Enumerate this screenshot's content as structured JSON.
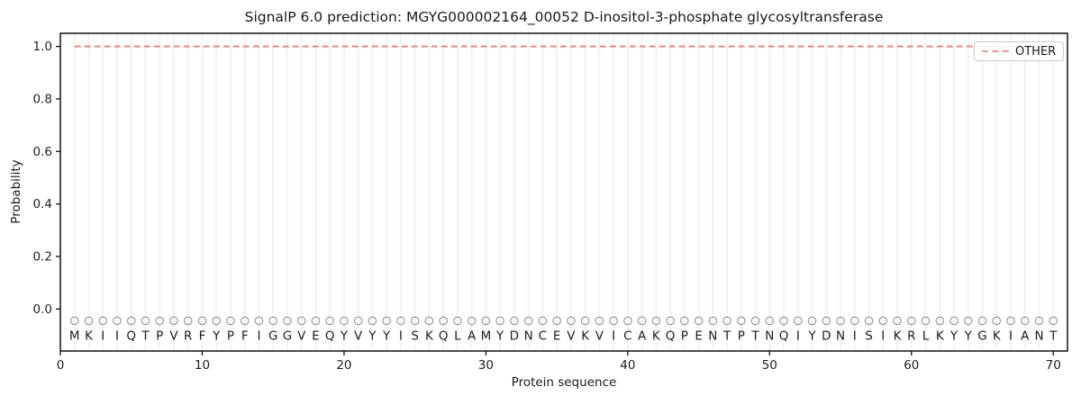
{
  "figure": {
    "title": "SignalP 6.0 prediction: MGYG000002164_00052 D-inositol-3-phosphate glycosyltransferase",
    "xlabel": "Protein sequence",
    "ylabel": "Probability",
    "legend": {
      "label": "OTHER"
    }
  },
  "chart_data": {
    "type": "line",
    "title": "SignalP 6.0 prediction: MGYG000002164_00052 D-inositol-3-phosphate glycosyltransferase",
    "xlabel": "Protein sequence",
    "ylabel": "Probability",
    "xlim": [
      0,
      71
    ],
    "ylim": [
      -0.16,
      1.05
    ],
    "x_ticks": [
      0,
      10,
      20,
      30,
      40,
      50,
      60,
      70
    ],
    "y_ticks": [
      0.0,
      0.2,
      0.4,
      0.6,
      0.8,
      1.0
    ],
    "grid": "vertical gridline at each residue position, no horizontal gridlines",
    "legend": {
      "position": "upper right",
      "entries": [
        {
          "label": "OTHER",
          "color": "#f08282",
          "line_style": "dashed"
        }
      ]
    },
    "sequence": "MKIIQTPVRFYPFIGGVEQYVYYISKQLAMYDNCEVKVICAKQPENTPTNQIYDNISIKRLKYYGKIANT",
    "sequence_length": 70,
    "residue_marker_value": -0.045,
    "residue_letter_value": -0.1,
    "series": [
      {
        "name": "OTHER",
        "color": "#f08282",
        "line_style": "dashed",
        "x": [
          1,
          2,
          3,
          4,
          5,
          6,
          7,
          8,
          9,
          10,
          11,
          12,
          13,
          14,
          15,
          16,
          17,
          18,
          19,
          20,
          21,
          22,
          23,
          24,
          25,
          26,
          27,
          28,
          29,
          30,
          31,
          32,
          33,
          34,
          35,
          36,
          37,
          38,
          39,
          40,
          41,
          42,
          43,
          44,
          45,
          46,
          47,
          48,
          49,
          50,
          51,
          52,
          53,
          54,
          55,
          56,
          57,
          58,
          59,
          60,
          61,
          62,
          63,
          64,
          65,
          66,
          67,
          68,
          69,
          70
        ],
        "values": [
          1.0,
          1.0,
          1.0,
          1.0,
          1.0,
          1.0,
          1.0,
          1.0,
          1.0,
          1.0,
          1.0,
          1.0,
          1.0,
          1.0,
          1.0,
          1.0,
          1.0,
          1.0,
          1.0,
          1.0,
          1.0,
          1.0,
          1.0,
          1.0,
          1.0,
          1.0,
          1.0,
          1.0,
          1.0,
          1.0,
          1.0,
          1.0,
          1.0,
          1.0,
          1.0,
          1.0,
          1.0,
          1.0,
          1.0,
          1.0,
          1.0,
          1.0,
          1.0,
          1.0,
          1.0,
          1.0,
          1.0,
          1.0,
          1.0,
          1.0,
          1.0,
          1.0,
          1.0,
          1.0,
          1.0,
          1.0,
          1.0,
          1.0,
          1.0,
          1.0,
          1.0,
          1.0,
          1.0,
          1.0,
          1.0,
          1.0,
          1.0,
          1.0,
          1.0,
          1.0
        ]
      }
    ],
    "colors": {
      "line_other": "#f08282",
      "grid": "#f2f2f2",
      "marker_circle": "#9b9b9b",
      "axis": "#111111",
      "text": "#1f1f1f",
      "legend_border": "#cccccc"
    }
  }
}
